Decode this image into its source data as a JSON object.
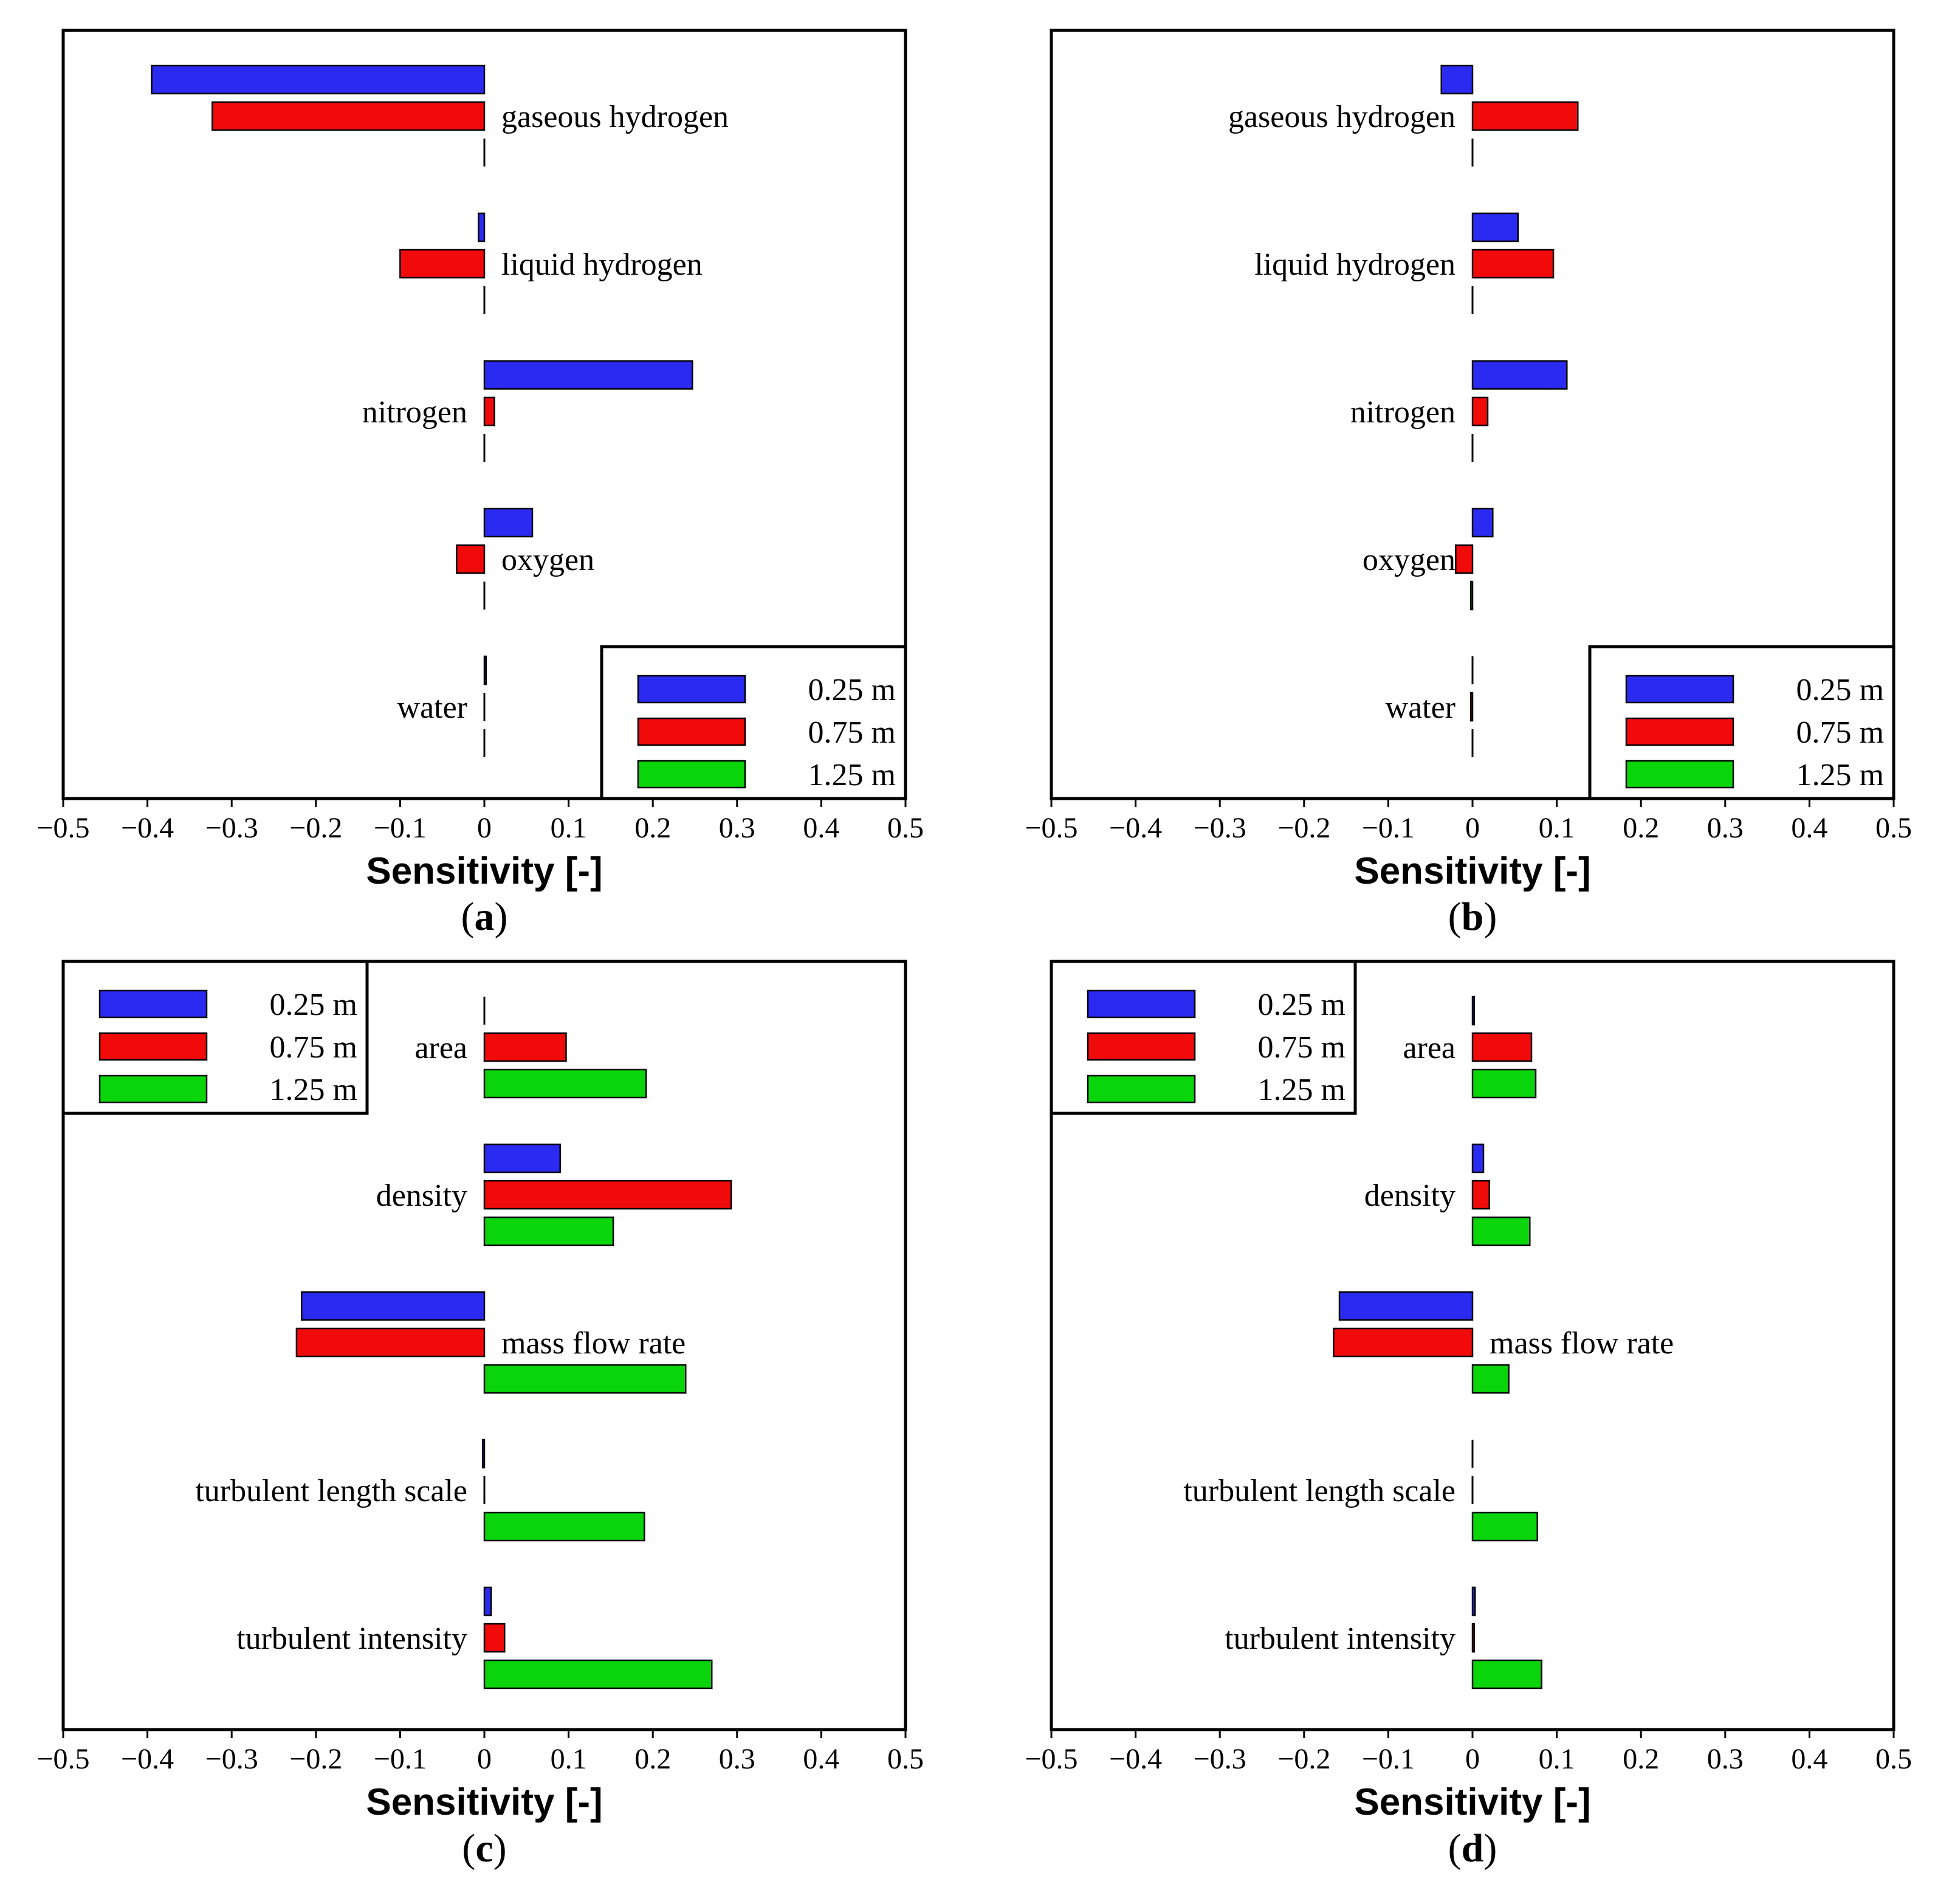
{
  "figure": {
    "x_axis_label": "Sensitivity [-]",
    "colors": {
      "series_0.25": "#2a2af0",
      "series_0.75": "#f00a0a",
      "series_1.25": "#0ad40a",
      "axis": "#000000"
    }
  },
  "chart_data": [
    {
      "panel": "a",
      "type": "bar",
      "orientation": "horizontal",
      "xlabel": "Sensitivity [-]",
      "xlim": [
        -0.5,
        0.5
      ],
      "xticks": [
        -0.5,
        -0.4,
        -0.3,
        -0.2,
        -0.1,
        0,
        0.1,
        0.2,
        0.3,
        0.4,
        0.5
      ],
      "xtick_labels": [
        "−0.5",
        "−0.4",
        "−0.3",
        "−0.2",
        "−0.1",
        "0",
        "0.1",
        "0.2",
        "0.3",
        "0.4",
        "0.5"
      ],
      "categories": [
        "gaseous hydrogen",
        "liquid hydrogen",
        "nitrogen",
        "oxygen",
        "water"
      ],
      "series": [
        {
          "name": "0.25 m",
          "color": "#2a2af0",
          "values": [
            -0.395,
            -0.007,
            0.247,
            0.057,
            0.002
          ]
        },
        {
          "name": "0.75 m",
          "color": "#f00a0a",
          "values": [
            -0.323,
            -0.1,
            0.012,
            -0.033,
            0.0
          ]
        },
        {
          "name": "1.25 m",
          "color": "#0ad40a",
          "values": [
            0.0,
            0.0,
            0.0,
            0.0,
            0.0
          ]
        }
      ],
      "legend_position": "lower-right",
      "panel_label": "a"
    },
    {
      "panel": "b",
      "type": "bar",
      "orientation": "horizontal",
      "xlabel": "Sensitivity [-]",
      "xlim": [
        -0.5,
        0.5
      ],
      "xticks": [
        -0.5,
        -0.4,
        -0.3,
        -0.2,
        -0.1,
        0,
        0.1,
        0.2,
        0.3,
        0.4,
        0.5
      ],
      "xtick_labels": [
        "−0.5",
        "−0.4",
        "−0.3",
        "−0.2",
        "−0.1",
        "0",
        "0.1",
        "0.2",
        "0.3",
        "0.4",
        "0.5"
      ],
      "categories": [
        "gaseous hydrogen",
        "liquid hydrogen",
        "nitrogen",
        "oxygen",
        "water"
      ],
      "series": [
        {
          "name": "0.25 m",
          "color": "#2a2af0",
          "values": [
            -0.037,
            0.054,
            0.112,
            0.024,
            0.0
          ]
        },
        {
          "name": "0.75 m",
          "color": "#f00a0a",
          "values": [
            0.125,
            0.096,
            0.018,
            -0.02,
            -0.002
          ]
        },
        {
          "name": "1.25 m",
          "color": "#0ad40a",
          "values": [
            0.0,
            0.0,
            0.0,
            -0.002,
            0.0
          ]
        }
      ],
      "legend_position": "lower-right",
      "panel_label": "b"
    },
    {
      "panel": "c",
      "type": "bar",
      "orientation": "horizontal",
      "xlabel": "Sensitivity [-]",
      "xlim": [
        -0.5,
        0.5
      ],
      "xticks": [
        -0.5,
        -0.4,
        -0.3,
        -0.2,
        -0.1,
        0,
        0.1,
        0.2,
        0.3,
        0.4,
        0.5
      ],
      "xtick_labels": [
        "−0.5",
        "−0.4",
        "−0.3",
        "−0.2",
        "−0.1",
        "0",
        "0.1",
        "0.2",
        "0.3",
        "0.4",
        "0.5"
      ],
      "categories": [
        "area",
        "density",
        "mass flow rate",
        "turbulent length scale",
        "turbulent intensity"
      ],
      "series": [
        {
          "name": "0.25 m",
          "color": "#2a2af0",
          "values": [
            0.0,
            0.09,
            -0.217,
            -0.002,
            0.008
          ]
        },
        {
          "name": "0.75 m",
          "color": "#f00a0a",
          "values": [
            0.097,
            0.293,
            -0.223,
            0.0,
            0.024
          ]
        },
        {
          "name": "1.25 m",
          "color": "#0ad40a",
          "values": [
            0.192,
            0.153,
            0.239,
            0.19,
            0.27
          ]
        }
      ],
      "legend_position": "upper-left",
      "panel_label": "c"
    },
    {
      "panel": "d",
      "type": "bar",
      "orientation": "horizontal",
      "xlabel": "Sensitivity [-]",
      "xlim": [
        -0.5,
        0.5
      ],
      "xticks": [
        -0.5,
        -0.4,
        -0.3,
        -0.2,
        -0.1,
        0,
        0.1,
        0.2,
        0.3,
        0.4,
        0.5
      ],
      "xtick_labels": [
        "−0.5",
        "−0.4",
        "−0.3",
        "−0.2",
        "−0.1",
        "0",
        "0.1",
        "0.2",
        "0.3",
        "0.4",
        "0.5"
      ],
      "categories": [
        "area",
        "density",
        "mass flow rate",
        "turbulent length scale",
        "turbulent intensity"
      ],
      "series": [
        {
          "name": "0.25 m",
          "color": "#2a2af0",
          "values": [
            0.002,
            0.013,
            -0.158,
            0.0,
            0.003
          ]
        },
        {
          "name": "0.75 m",
          "color": "#f00a0a",
          "values": [
            0.07,
            0.02,
            -0.165,
            0.0,
            0.002
          ]
        },
        {
          "name": "1.25 m",
          "color": "#0ad40a",
          "values": [
            0.075,
            0.068,
            0.043,
            0.077,
            0.082
          ]
        }
      ],
      "legend_position": "upper-left",
      "panel_label": "d"
    }
  ]
}
